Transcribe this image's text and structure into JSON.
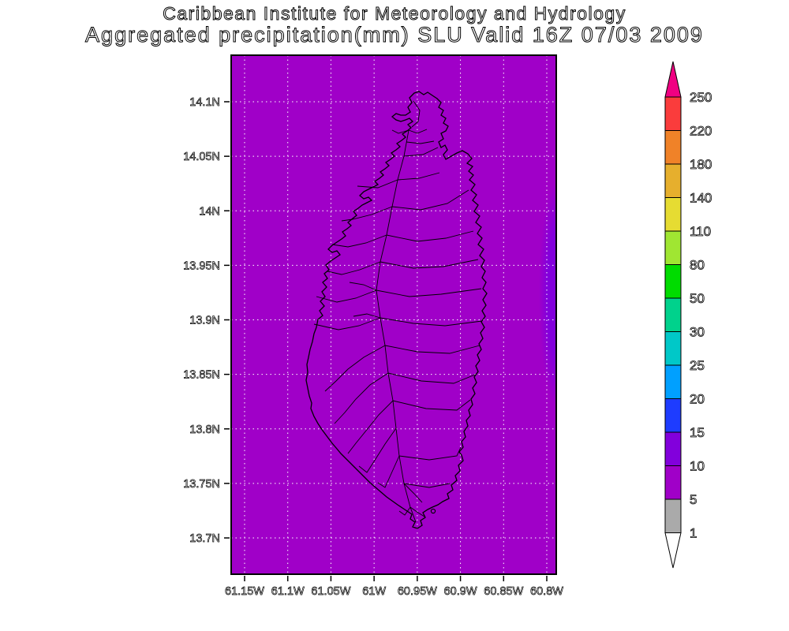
{
  "header": {
    "title_line1": "Caribbean Institute for Meteorology and Hydrology",
    "title_line2": "Aggregated precipitation(mm) SLU Valid 16Z 07/03 2009"
  },
  "map": {
    "background_color": "#A000C8",
    "patch_color": "#8200DC",
    "grid_color": "#ffffff",
    "coastline_color": "#000000",
    "frame_color": "#000000",
    "lat_tick_labels": [
      "14.1N",
      "14.05N",
      "14N",
      "13.95N",
      "13.9N",
      "13.85N",
      "13.8N",
      "13.75N",
      "13.7N"
    ],
    "lon_tick_labels": [
      "61.15W",
      "61.1W",
      "61.05W",
      "61W",
      "60.95W",
      "60.9W",
      "60.85W",
      "60.8W"
    ]
  },
  "colorbar": {
    "labels_top_to_bottom": [
      "250",
      "220",
      "180",
      "140",
      "110",
      "80",
      "50",
      "30",
      "25",
      "20",
      "15",
      "10",
      "5",
      "1"
    ],
    "segment_colors_top_to_bottom": [
      "#FA3C3C",
      "#F08228",
      "#E6AF2D",
      "#E6DC32",
      "#A0E632",
      "#00DC00",
      "#00D28C",
      "#00C8C8",
      "#00A0FF",
      "#1E3CFF",
      "#8200DC",
      "#A000C8",
      "#AAAAAA"
    ],
    "top_arrow_color": "#F00082",
    "bottom_arrow_color": "#FFFFFF"
  },
  "chart_data": {
    "type": "heatmap",
    "title": "Aggregated precipitation(mm) SLU Valid 16Z 07/03 2009",
    "institution": "Caribbean Institute for Meteorology and Hydrology",
    "region": "Saint Lucia (SLU)",
    "units": "mm",
    "valid_time": "16Z 07/03 2009",
    "x_tick_labels": [
      "61.15W",
      "61.1W",
      "61.05W",
      "61W",
      "60.95W",
      "60.9W",
      "60.85W",
      "60.8W"
    ],
    "y_tick_labels": [
      "14.1N",
      "14.05N",
      "14N",
      "13.95N",
      "13.9N",
      "13.85N",
      "13.8N",
      "13.75N",
      "13.7N"
    ],
    "grid": true,
    "legend_position": "right",
    "colorbar_levels": [
      1,
      5,
      10,
      15,
      20,
      25,
      30,
      50,
      80,
      110,
      140,
      180,
      220,
      250
    ],
    "colorbar_colors_low_to_high": [
      "#FFFFFF",
      "#AAAAAA",
      "#A000C8",
      "#8200DC",
      "#1E3CFF",
      "#00A0FF",
      "#00C8C8",
      "#00D28C",
      "#00DC00",
      "#A0E632",
      "#E6DC32",
      "#E6AF2D",
      "#F08228",
      "#FA3C3C",
      "#F00082"
    ],
    "field": {
      "dominant_value_range_mm": "5-10",
      "secondary_patch": {
        "value_range_mm": "10-15",
        "location": "east (right) edge of domain between about 13.85N and 14.0N"
      }
    },
    "overlay": "Saint Lucia coastline with interior watershed boundaries"
  }
}
